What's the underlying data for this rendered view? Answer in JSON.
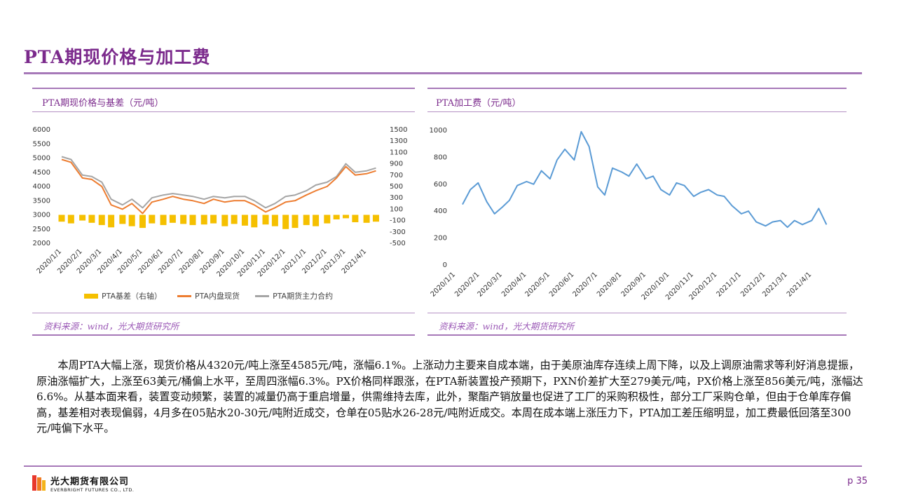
{
  "page": {
    "title": "PTA期现价格与加工费",
    "body_text": "本周PTA大幅上涨，现货价格从4320元/吨上涨至4585元/吨，涨幅6.1%。上涨动力主要来自成本端，由于美原油库存连续上周下降，以及上调原油需求等利好消息提振，原油涨幅扩大，上涨至63美元/桶偏上水平，至周四涨幅6.3%。PX价格同样跟涨，在PTA新装置投产预期下，PXN价差扩大至279美元/吨，PX价格上涨至856美元/吨，涨幅达6.6%。从基本面来看，装置变动频繁，装置的减量仍高于重启增量，供需维持去库，此外，聚酯产销放量也促进了工厂的采购积极性，部分工厂采购仓单，但由于仓单库存偏高，基差相对表现偏弱，4月多在05贴水20-30元/吨附近成交，仓单在05贴水26-28元/吨附近成交。本周在成本端上涨压力下，PTA加工差压缩明显，加工费最低回落至300元/吨偏下水平。",
    "page_number": "p 35"
  },
  "footer": {
    "company_cn": "光大期货有限公司",
    "company_en": "EVERBRIGHT FUTURES CO., LTD."
  },
  "colors": {
    "accent": "#7b2a8c",
    "rule": "#a678b8",
    "basis": "#f5c000",
    "spot": "#ed7d31",
    "futures": "#a5a5a5",
    "fee": "#5b9bd5"
  },
  "chart_data": [
    {
      "type": "line",
      "title": "PTA期现价格与基差（元/吨）",
      "source": "资料来源：wind，光大期货研究所",
      "x_ticks": [
        "2020/1/1",
        "2020/2/1",
        "2020/3/1",
        "2020/4/1",
        "2020/5/1",
        "2020/6/1",
        "2020/7/1",
        "2020/8/1",
        "2020/9/1",
        "2020/10/1",
        "2020/11/1",
        "2020/12/1",
        "2021/1/1",
        "2021/2/1",
        "2021/3/1",
        "2021/4/1"
      ],
      "y_left": {
        "range": [
          2000,
          6000
        ],
        "ticks": [
          2000,
          2500,
          3000,
          3500,
          4000,
          4500,
          5000,
          5500,
          6000
        ]
      },
      "y_right": {
        "range": [
          -500,
          1500
        ],
        "ticks": [
          -500,
          -300,
          -100,
          100,
          300,
          500,
          700,
          900,
          1100,
          1300,
          1500
        ]
      },
      "legend": [
        "PTA基差（右轴）",
        "PTA内盘现货",
        "PTA期货主力合约"
      ],
      "legend_position": "bottom",
      "series": [
        {
          "name": "PTA基差（右轴）",
          "kind": "bar",
          "axis": "right",
          "x": [
            "2020/1/1",
            "2020/1/15",
            "2020/2/1",
            "2020/2/15",
            "2020/3/1",
            "2020/3/15",
            "2020/4/1",
            "2020/4/15",
            "2020/5/1",
            "2020/5/15",
            "2020/6/1",
            "2020/6/15",
            "2020/7/1",
            "2020/7/15",
            "2020/8/1",
            "2020/8/15",
            "2020/9/1",
            "2020/9/15",
            "2020/10/1",
            "2020/10/15",
            "2020/11/1",
            "2020/11/15",
            "2020/12/1",
            "2020/12/15",
            "2021/1/1",
            "2021/1/15",
            "2021/2/1",
            "2021/2/15",
            "2021/3/1",
            "2021/3/15",
            "2021/4/1",
            "2021/4/15"
          ],
          "values": [
            -120,
            -150,
            -100,
            -140,
            -180,
            -220,
            -160,
            -200,
            -230,
            -150,
            -180,
            -140,
            -160,
            -180,
            -170,
            -150,
            -200,
            -160,
            -190,
            -220,
            -170,
            -200,
            -250,
            -230,
            -180,
            -200,
            -150,
            -80,
            -60,
            -130,
            -140,
            -120
          ]
        },
        {
          "name": "PTA内盘现货",
          "kind": "line",
          "axis": "left",
          "x": [
            "2020/1/1",
            "2020/1/15",
            "2020/2/1",
            "2020/2/15",
            "2020/3/1",
            "2020/3/15",
            "2020/4/1",
            "2020/4/15",
            "2020/5/1",
            "2020/5/15",
            "2020/6/1",
            "2020/6/15",
            "2020/7/1",
            "2020/7/15",
            "2020/8/1",
            "2020/8/15",
            "2020/9/1",
            "2020/9/15",
            "2020/10/1",
            "2020/10/15",
            "2020/11/1",
            "2020/11/15",
            "2020/12/1",
            "2020/12/15",
            "2021/1/1",
            "2021/1/15",
            "2021/2/1",
            "2021/2/15",
            "2021/3/1",
            "2021/3/15",
            "2021/4/1",
            "2021/4/15"
          ],
          "values": [
            4950,
            4850,
            4300,
            4250,
            4000,
            3350,
            3200,
            3400,
            3050,
            3450,
            3550,
            3650,
            3550,
            3500,
            3400,
            3550,
            3450,
            3500,
            3500,
            3350,
            3100,
            3250,
            3450,
            3500,
            3700,
            3850,
            4000,
            4300,
            4700,
            4400,
            4450,
            4550
          ]
        },
        {
          "name": "PTA期货主力合约",
          "kind": "line",
          "axis": "left",
          "x": [
            "2020/1/1",
            "2020/1/15",
            "2020/2/1",
            "2020/2/15",
            "2020/3/1",
            "2020/3/15",
            "2020/4/1",
            "2020/4/15",
            "2020/5/1",
            "2020/5/15",
            "2020/6/1",
            "2020/6/15",
            "2020/7/1",
            "2020/7/15",
            "2020/8/1",
            "2020/8/15",
            "2020/9/1",
            "2020/9/15",
            "2020/10/1",
            "2020/10/15",
            "2020/11/1",
            "2020/11/15",
            "2020/12/1",
            "2020/12/15",
            "2021/1/1",
            "2021/1/15",
            "2021/2/1",
            "2021/2/15",
            "2021/3/1",
            "2021/3/15",
            "2021/4/1",
            "2021/4/15"
          ],
          "values": [
            5050,
            4950,
            4400,
            4350,
            4150,
            3550,
            3350,
            3550,
            3250,
            3600,
            3700,
            3750,
            3700,
            3650,
            3550,
            3650,
            3600,
            3650,
            3650,
            3500,
            3250,
            3400,
            3650,
            3700,
            3850,
            4050,
            4150,
            4350,
            4800,
            4500,
            4550,
            4650
          ]
        }
      ]
    },
    {
      "type": "line",
      "title": "PTA加工费（元/吨）",
      "source": "资料来源：wind，光大期货研究所",
      "x_ticks": [
        "2020/1/1",
        "2020/2/1",
        "2020/3/1",
        "2020/4/1",
        "2020/5/1",
        "2020/6/1",
        "2020/7/1",
        "2020/8/1",
        "2020/9/1",
        "2020/10/1",
        "2020/11/1",
        "2020/12/1",
        "2021/1/1",
        "2021/2/1",
        "2021/3/1",
        "2021/4/1"
      ],
      "y": {
        "range": [
          0,
          1000
        ],
        "ticks": [
          0,
          200,
          400,
          600,
          800,
          1000
        ]
      },
      "series": [
        {
          "name": "",
          "x": [
            "2020/1/10",
            "2020/1/20",
            "2020/1/30",
            "2020/2/10",
            "2020/2/20",
            "2020/3/1",
            "2020/3/10",
            "2020/3/20",
            "2020/4/1",
            "2020/4/10",
            "2020/4/20",
            "2020/5/1",
            "2020/5/10",
            "2020/5/20",
            "2020/6/1",
            "2020/6/10",
            "2020/6/20",
            "2020/7/1",
            "2020/7/10",
            "2020/7/20",
            "2020/8/1",
            "2020/8/10",
            "2020/8/20",
            "2020/9/1",
            "2020/9/10",
            "2020/9/20",
            "2020/10/1",
            "2020/10/10",
            "2020/10/20",
            "2020/11/1",
            "2020/11/10",
            "2020/11/20",
            "2020/12/1",
            "2020/12/10",
            "2020/12/20",
            "2021/1/1",
            "2021/1/10",
            "2021/1/20",
            "2021/2/1",
            "2021/2/10",
            "2021/2/20",
            "2021/3/1",
            "2021/3/10",
            "2021/3/20",
            "2021/4/1",
            "2021/4/10",
            "2021/4/20"
          ],
          "values": [
            450,
            560,
            610,
            470,
            380,
            430,
            480,
            590,
            620,
            600,
            700,
            640,
            780,
            860,
            780,
            990,
            880,
            580,
            520,
            720,
            690,
            660,
            750,
            640,
            660,
            560,
            520,
            610,
            590,
            510,
            540,
            560,
            520,
            510,
            440,
            380,
            400,
            320,
            290,
            320,
            330,
            280,
            330,
            300,
            330,
            420,
            300
          ]
        }
      ]
    }
  ]
}
